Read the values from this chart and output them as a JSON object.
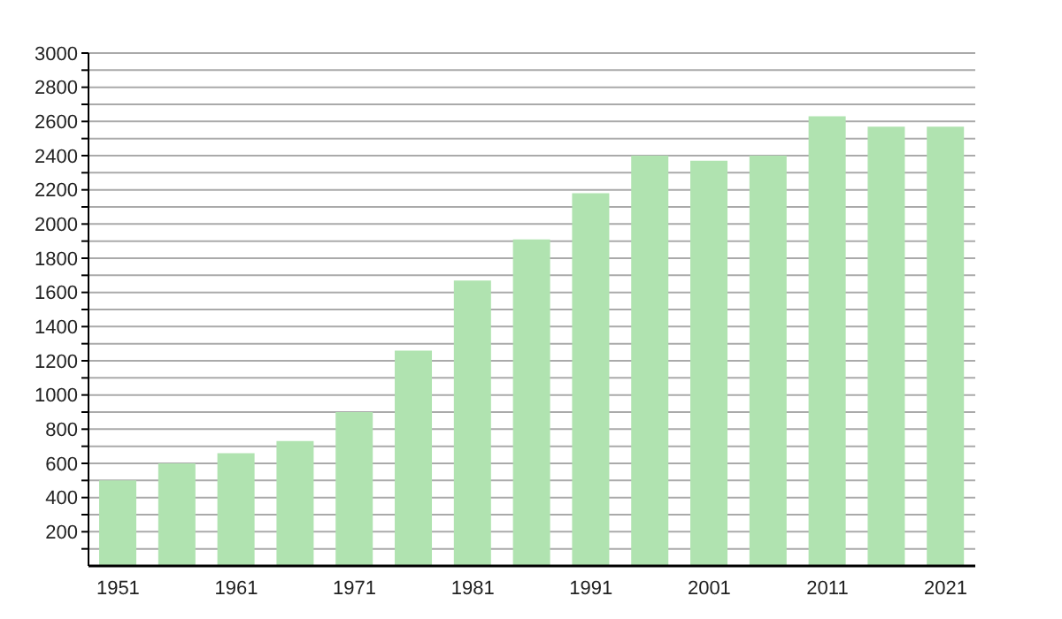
{
  "chart_data": {
    "type": "bar",
    "categories": [
      "1951",
      null,
      "1961",
      null,
      "1971",
      null,
      "1981",
      null,
      "1991",
      null,
      "2001",
      null,
      "2011",
      null,
      "2021"
    ],
    "values": [
      500,
      600,
      660,
      730,
      900,
      1260,
      1670,
      1910,
      2180,
      2400,
      2370,
      2400,
      2630,
      2570,
      2570
    ],
    "color": "#b0e3b0",
    "ylim": [
      0,
      3000
    ],
    "yticks": [
      {
        "value": 100,
        "label": null
      },
      200,
      {
        "value": 300,
        "label": null
      },
      400,
      {
        "value": 500,
        "label": null
      },
      600,
      {
        "value": 700,
        "label": null
      },
      800,
      {
        "value": 900,
        "label": null
      },
      1000,
      {
        "value": 1100,
        "label": null
      },
      1200,
      {
        "value": 1300,
        "label": null
      },
      1400,
      {
        "value": 1500,
        "label": null
      },
      1600,
      {
        "value": 1700,
        "label": null
      },
      1800,
      {
        "value": 1900,
        "label": null
      },
      2000,
      {
        "value": 2100,
        "label": null
      },
      2200,
      {
        "value": 2300,
        "label": null
      },
      2400,
      {
        "value": 2500,
        "label": null
      },
      2600,
      {
        "value": 2700,
        "label": null
      },
      2800,
      {
        "value": 2900,
        "label": null
      },
      3000
    ],
    "grid": "y"
  }
}
